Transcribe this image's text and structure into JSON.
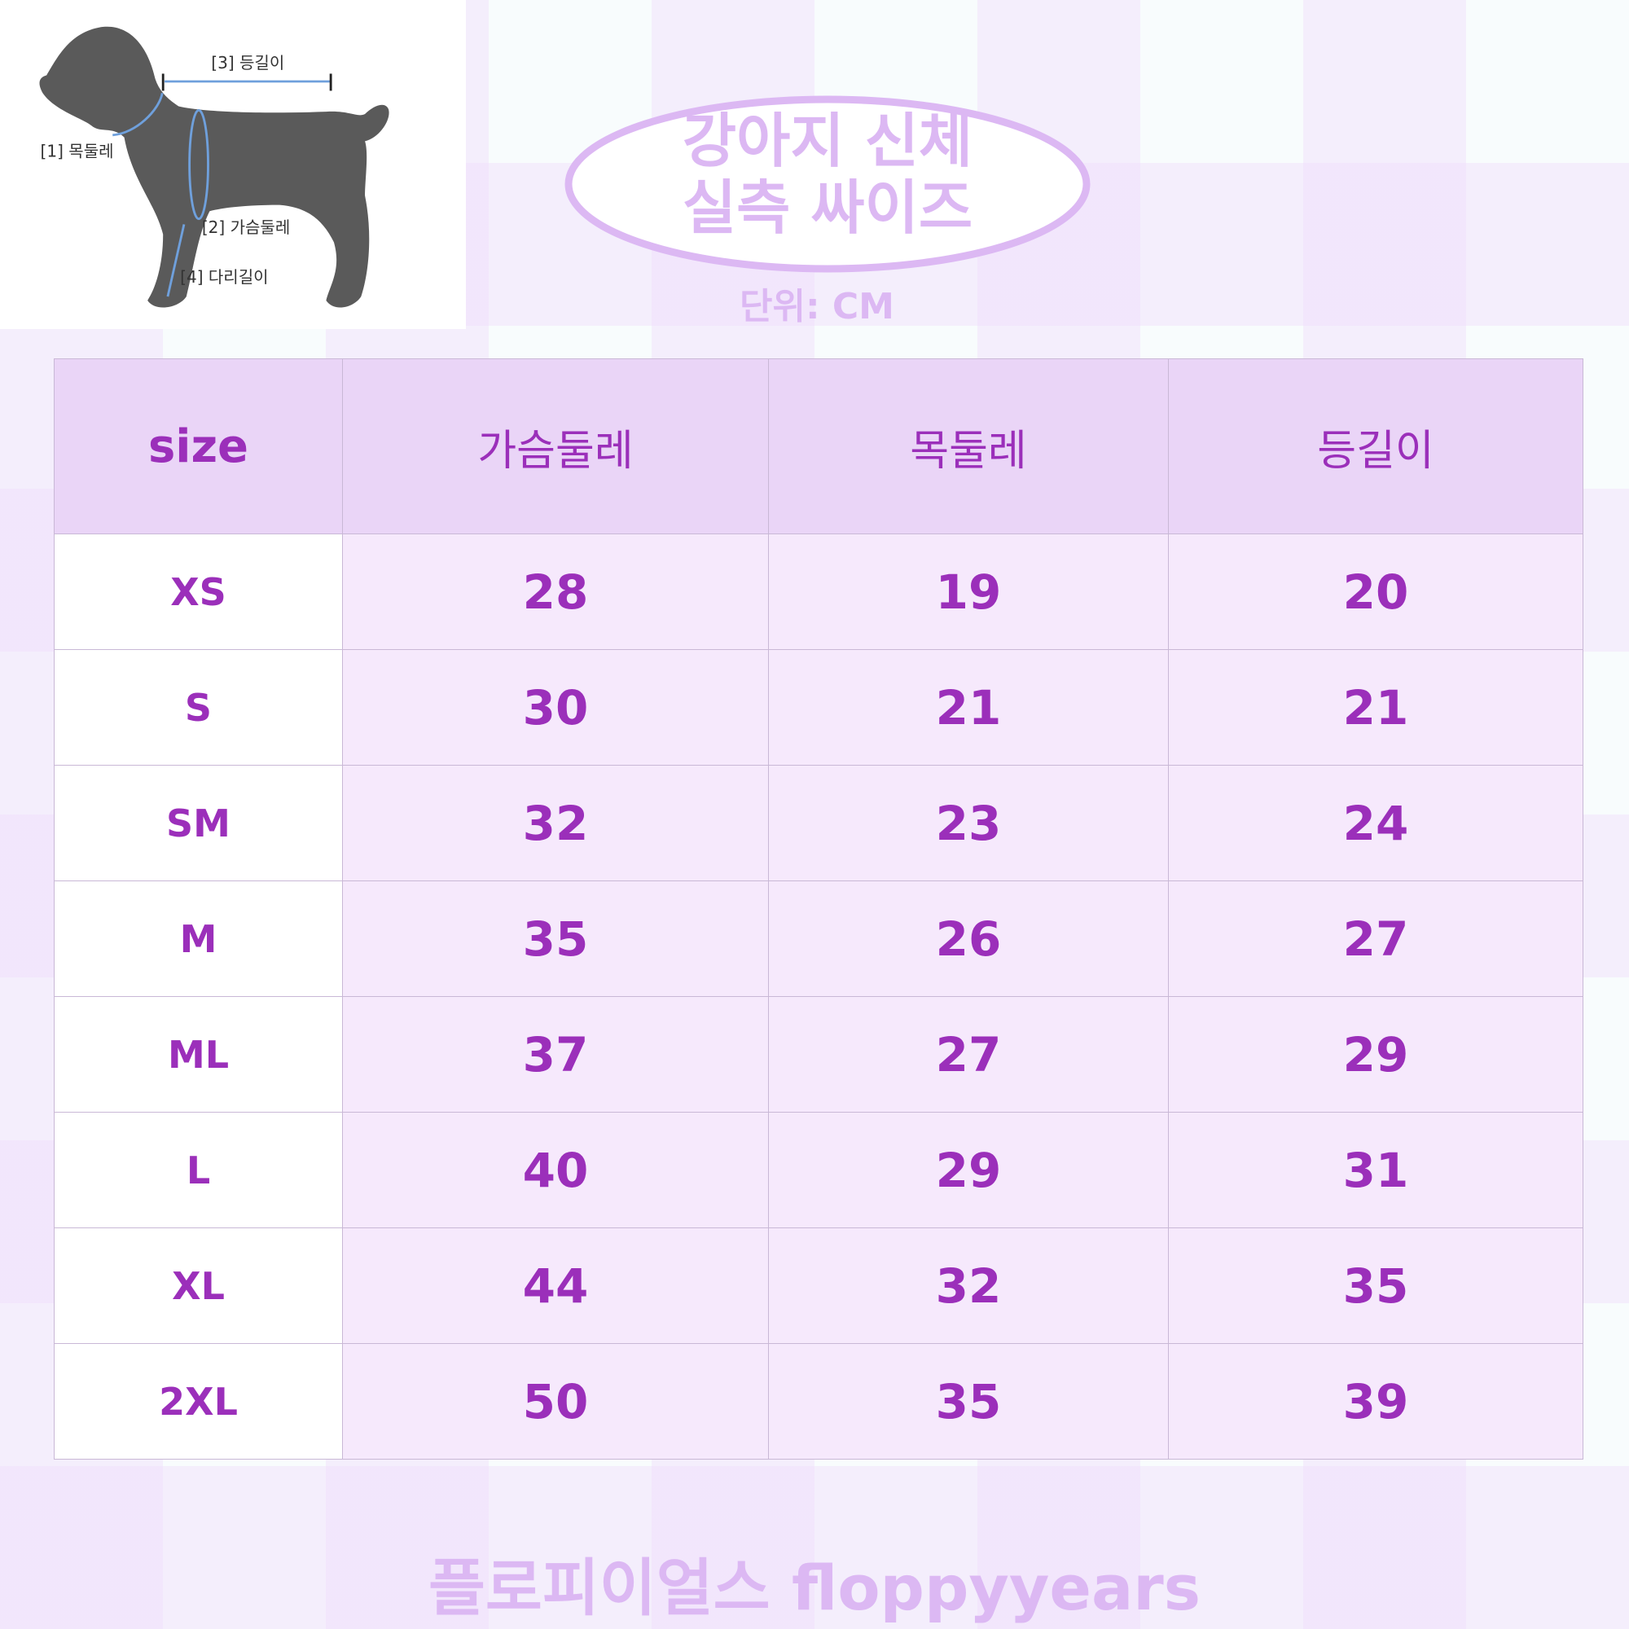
{
  "diagram": {
    "labels": [
      "[1] 목둘레",
      "[2] 가슴둘레",
      "[3] 등길이",
      "[4] 다리길이"
    ],
    "silhouette_color": "#5a5a5a",
    "measure_line_color": "#6fa0dc"
  },
  "title": {
    "line1": "강아지 신체",
    "line2": "실측 싸이즈",
    "unit": "단위: CM",
    "color": "#dcb8f3"
  },
  "table": {
    "headers": [
      "size",
      "가슴둘레",
      "목둘레",
      "등길이"
    ],
    "rows": [
      [
        "XS",
        "28",
        "19",
        "20"
      ],
      [
        "S",
        "30",
        "21",
        "21"
      ],
      [
        "SM",
        "32",
        "23",
        "24"
      ],
      [
        "M",
        "35",
        "26",
        "27"
      ],
      [
        "ML",
        "37",
        "27",
        "29"
      ],
      [
        "L",
        "40",
        "29",
        "31"
      ],
      [
        "XL",
        "44",
        "32",
        "35"
      ],
      [
        "2XL",
        "50",
        "35",
        "39"
      ]
    ],
    "text_color": "#9b2fba",
    "header_bg": "#ead5f7",
    "cell_bg": "#f6e9fc"
  },
  "footer": {
    "brand": "플로피이얼스 floppyyears"
  }
}
